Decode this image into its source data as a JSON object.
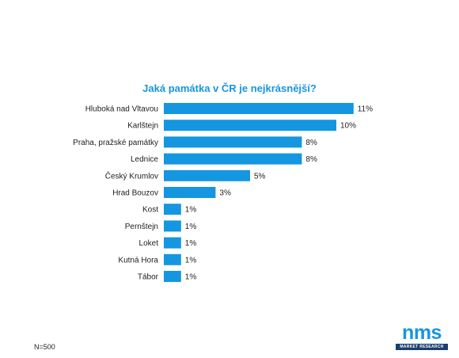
{
  "colors": {
    "accent": "#1596e0",
    "text": "#1e1e1e",
    "logo_dark": "#1b3e6e"
  },
  "footnote": "N=500",
  "logo": {
    "brand": "nms",
    "subtitle": "MARKET RESEARCH"
  },
  "chart_data": {
    "type": "bar",
    "orientation": "horizontal",
    "title": "Jaká památka v ČR je nejkrásnější?",
    "categories": [
      "Hluboká nad Vltavou",
      "Karlštejn",
      "Praha, pražské památky",
      "Lednice",
      "Český Krumlov",
      "Hrad Bouzov",
      "Kost",
      "Pernštejn",
      "Loket",
      "Kutná Hora",
      "Tábor"
    ],
    "values": [
      11,
      10,
      8,
      8,
      5,
      3,
      1,
      1,
      1,
      1,
      1
    ],
    "value_labels": [
      "11%",
      "10%",
      "8%",
      "8%",
      "5%",
      "3%",
      "1%",
      "1%",
      "1%",
      "1%",
      "1%"
    ],
    "unit": "%",
    "xlim": [
      0,
      11
    ],
    "grid": false,
    "legend": "none"
  }
}
